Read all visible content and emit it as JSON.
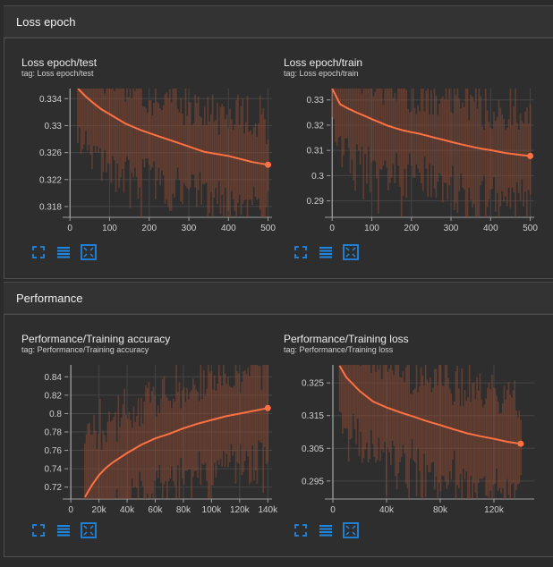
{
  "sections": [
    {
      "title": "Loss epoch"
    },
    {
      "title": "Performance"
    }
  ],
  "cards": [
    {
      "title": "Loss epoch/test",
      "tag": "tag: Loss epoch/test",
      "chart_data": {
        "type": "line",
        "title": "Loss epoch/test",
        "xlim": [
          -5,
          510
        ],
        "ylim": [
          0.3164,
          0.3355
        ],
        "x_ticks": [
          0,
          100,
          200,
          300,
          400,
          500
        ],
        "x_tick_labels": [
          "0",
          "100",
          "200",
          "300",
          "400",
          "500"
        ],
        "y_ticks": [
          0.318,
          0.322,
          0.326,
          0.33,
          0.334
        ],
        "y_tick_labels": [
          "0.318",
          "0.322",
          "0.326",
          "0.33",
          "0.334"
        ],
        "series": [
          {
            "x": [
              20,
              40,
              60,
              80,
              100,
              120,
              140,
              160,
              180,
              200,
              220,
              240,
              260,
              280,
              300,
              320,
              340,
              360,
              380,
              400,
              420,
              440,
              460,
              480,
              500
            ],
            "y": [
              0.3355,
              0.3343,
              0.3333,
              0.3324,
              0.3317,
              0.331,
              0.3303,
              0.3298,
              0.3293,
              0.3289,
              0.3285,
              0.3281,
              0.3277,
              0.3273,
              0.3269,
              0.3265,
              0.3261,
              0.3259,
              0.3257,
              0.3255,
              0.3252,
              0.3249,
              0.3246,
              0.3244,
              0.3242
            ]
          }
        ]
      }
    },
    {
      "title": "Loss epoch/train",
      "tag": "tag: Loss epoch/train",
      "chart_data": {
        "type": "line",
        "title": "Loss epoch/train",
        "xlim": [
          -5,
          510
        ],
        "ylim": [
          0.2835,
          0.3345
        ],
        "x_ticks": [
          0,
          100,
          200,
          300,
          400,
          500
        ],
        "x_tick_labels": [
          "0",
          "100",
          "200",
          "300",
          "400",
          "500"
        ],
        "y_ticks": [
          0.29,
          0.3,
          0.31,
          0.32,
          0.33
        ],
        "y_tick_labels": [
          "0.29",
          "0.3",
          "0.31",
          "0.32",
          "0.33"
        ],
        "series": [
          {
            "x": [
              0,
              20,
              40,
              60,
              80,
              100,
              120,
              140,
              160,
              180,
              200,
              220,
              240,
              260,
              280,
              300,
              320,
              340,
              360,
              380,
              400,
              420,
              440,
              460,
              480,
              500
            ],
            "y": [
              0.3345,
              0.3283,
              0.3266,
              0.3251,
              0.3238,
              0.3224,
              0.3211,
              0.3198,
              0.3188,
              0.3179,
              0.3172,
              0.3166,
              0.3158,
              0.315,
              0.3142,
              0.3134,
              0.3126,
              0.3119,
              0.3112,
              0.3106,
              0.3101,
              0.3095,
              0.3089,
              0.3085,
              0.3081,
              0.3078
            ]
          }
        ]
      }
    },
    {
      "title": "Performance/Training accuracy",
      "tag": "tag: Performance/Training accuracy",
      "chart_data": {
        "type": "line",
        "title": "Performance/Training accuracy",
        "xlim": [
          -2000,
          143000
        ],
        "ylim": [
          0.707,
          0.853
        ],
        "x_ticks": [
          0,
          20000,
          40000,
          60000,
          80000,
          100000,
          120000,
          140000
        ],
        "x_tick_labels": [
          "0",
          "20k",
          "40k",
          "60k",
          "80k",
          "100k",
          "120k",
          "140k"
        ],
        "y_ticks": [
          0.72,
          0.74,
          0.76,
          0.78,
          0.8,
          0.82,
          0.84
        ],
        "y_tick_labels": [
          "0.72",
          "0.74",
          "0.76",
          "0.78",
          "0.8",
          "0.82",
          "0.84"
        ],
        "series": [
          {
            "x": [
              10000,
              15000,
              20000,
              25000,
              30000,
              40000,
              50000,
              60000,
              70000,
              80000,
              90000,
              100000,
              110000,
              120000,
              130000,
              140000
            ],
            "y": [
              0.709,
              0.722,
              0.733,
              0.741,
              0.747,
              0.757,
              0.766,
              0.773,
              0.778,
              0.784,
              0.789,
              0.793,
              0.797,
              0.8,
              0.803,
              0.806
            ]
          }
        ]
      }
    },
    {
      "title": "Performance/Training loss",
      "tag": "tag: Performance/Training loss",
      "chart_data": {
        "type": "line",
        "title": "Performance/Training loss",
        "xlim": [
          -2000,
          150000
        ],
        "ylim": [
          0.2895,
          0.3305
        ],
        "x_ticks": [
          0,
          40000,
          80000,
          120000
        ],
        "x_tick_labels": [
          "0",
          "40k",
          "80k",
          "120k"
        ],
        "y_ticks": [
          0.295,
          0.305,
          0.315,
          0.325
        ],
        "y_tick_labels": [
          "0.295",
          "0.305",
          "0.315",
          "0.325"
        ],
        "series": [
          {
            "x": [
              5000,
              10000,
              20000,
              30000,
              40000,
              50000,
              60000,
              70000,
              80000,
              90000,
              100000,
              110000,
              120000,
              130000,
              140000
            ],
            "y": [
              0.3302,
              0.3267,
              0.3225,
              0.3193,
              0.3175,
              0.316,
              0.3147,
              0.3133,
              0.3121,
              0.3108,
              0.3096,
              0.3087,
              0.3079,
              0.307,
              0.3064
            ]
          }
        ]
      }
    }
  ],
  "icons": [
    "fullscreen-icon",
    "list-icon",
    "fit-domain-icon"
  ],
  "colors": {
    "accent": "#ff7043",
    "background": "#2b2b2b",
    "panel": "#2e2e2e",
    "grid": "#454545",
    "icon": "#1e88e5"
  }
}
